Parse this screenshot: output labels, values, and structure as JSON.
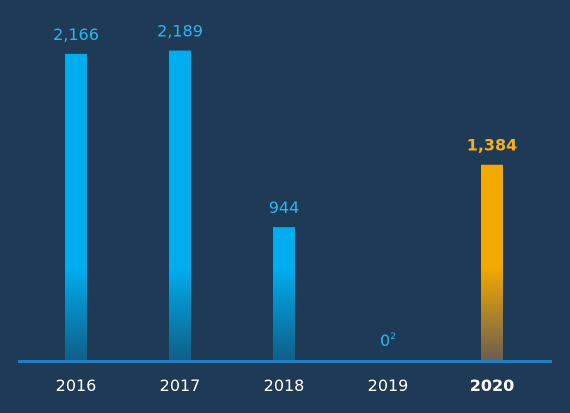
{
  "chart_data": {
    "type": "bar",
    "title": "",
    "xlabel": "",
    "ylabel": "",
    "categories": [
      "2016",
      "2017",
      "2018",
      "2019",
      "2020"
    ],
    "values": [
      2166,
      2189,
      944,
      0,
      1384
    ],
    "value_labels": [
      "2,166",
      "2,189",
      "944",
      "0",
      "1,384"
    ],
    "value_footnotes": [
      "",
      "",
      "",
      "2",
      ""
    ],
    "highlight_index": 4,
    "ylim": [
      0,
      2400
    ],
    "grid": false,
    "legend": "none"
  },
  "colors": {
    "background": "#1e3a56",
    "bar": "#00adef",
    "bar_bottom": "#0f5e86",
    "highlight": "#f2a900",
    "highlight_bottom": "#6a5d52",
    "baseline": "#1f7fc2",
    "axis_label": "#ffffff",
    "value_label": "#2bb6ef",
    "highlight_label": "#f2b01e"
  }
}
